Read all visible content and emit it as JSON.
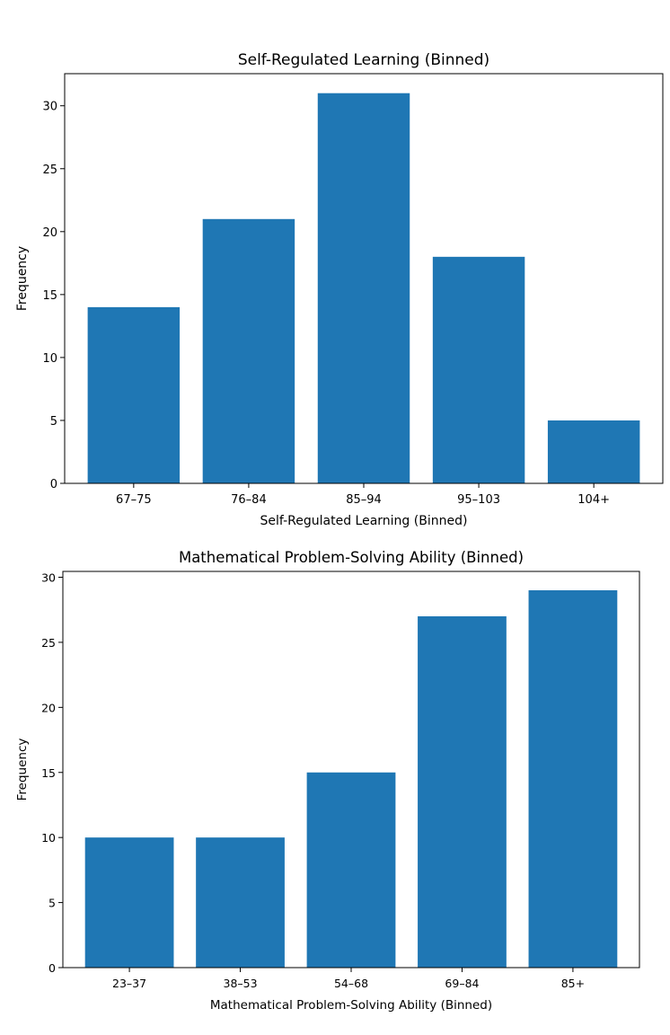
{
  "chart_data": [
    {
      "type": "bar",
      "title": "Self-Regulated Learning (Binned)",
      "xlabel": "Self-Regulated Learning (Binned)",
      "ylabel": "Frequency",
      "categories": [
        "67–75",
        "76–84",
        "85–94",
        "95–103",
        "104+"
      ],
      "values": [
        14,
        21,
        31,
        18,
        5
      ],
      "yticks": [
        0,
        5,
        10,
        15,
        20,
        25,
        30
      ],
      "ylim": [
        0,
        32.55
      ],
      "color": "#1f77b4",
      "grid": false
    },
    {
      "type": "bar",
      "title": "Mathematical Problem-Solving Ability (Binned)",
      "xlabel": "Mathematical Problem-Solving Ability (Binned)",
      "ylabel": "Frequency",
      "categories": [
        "23–37",
        "38–53",
        "54–68",
        "69–84",
        "85+"
      ],
      "values": [
        10,
        10,
        15,
        27,
        29
      ],
      "yticks": [
        0,
        5,
        10,
        15,
        20,
        25,
        30
      ],
      "ylim": [
        0,
        30.45
      ],
      "color": "#1f77b4",
      "grid": false
    }
  ]
}
